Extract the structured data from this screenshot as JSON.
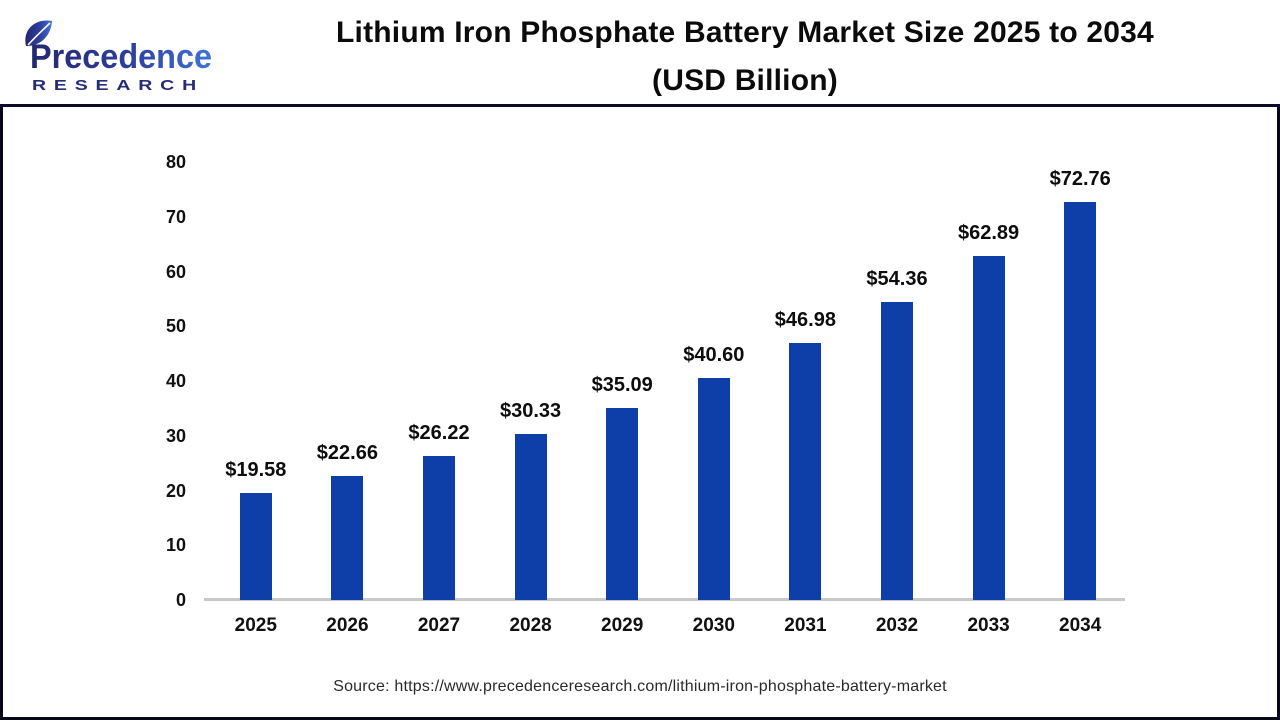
{
  "header": {
    "logo": {
      "name": "Precedence",
      "subtitle": "RESEARCH"
    },
    "title_line1": "Lithium Iron Phosphate Battery Market Size 2025 to 2034",
    "title_line2": "(USD Billion)"
  },
  "chart_data": {
    "type": "bar",
    "title": "Lithium Iron Phosphate Battery Market Size 2025 to 2034 (USD Billion)",
    "categories": [
      "2025",
      "2026",
      "2027",
      "2028",
      "2029",
      "2030",
      "2031",
      "2032",
      "2033",
      "2034"
    ],
    "values": [
      19.58,
      22.66,
      26.22,
      30.33,
      35.09,
      40.6,
      46.98,
      54.36,
      62.89,
      72.76
    ],
    "bar_labels": [
      "$19.58",
      "$22.66",
      "$26.22",
      "$30.33",
      "$35.09",
      "$40.60",
      "$46.98",
      "$54.36",
      "$62.89",
      "$72.76"
    ],
    "xlabel": "",
    "ylabel": "",
    "ylim": [
      0,
      80
    ],
    "yticks": [
      0,
      10,
      20,
      30,
      40,
      50,
      60,
      70,
      80
    ],
    "grid": false,
    "legend_position": "none",
    "bar_color": "#0e3ea7",
    "axis_line_color": "#c9c9c9"
  },
  "footer": {
    "source": "Source: https://www.precedenceresearch.com/lithium-iron-phosphate-battery-market"
  }
}
